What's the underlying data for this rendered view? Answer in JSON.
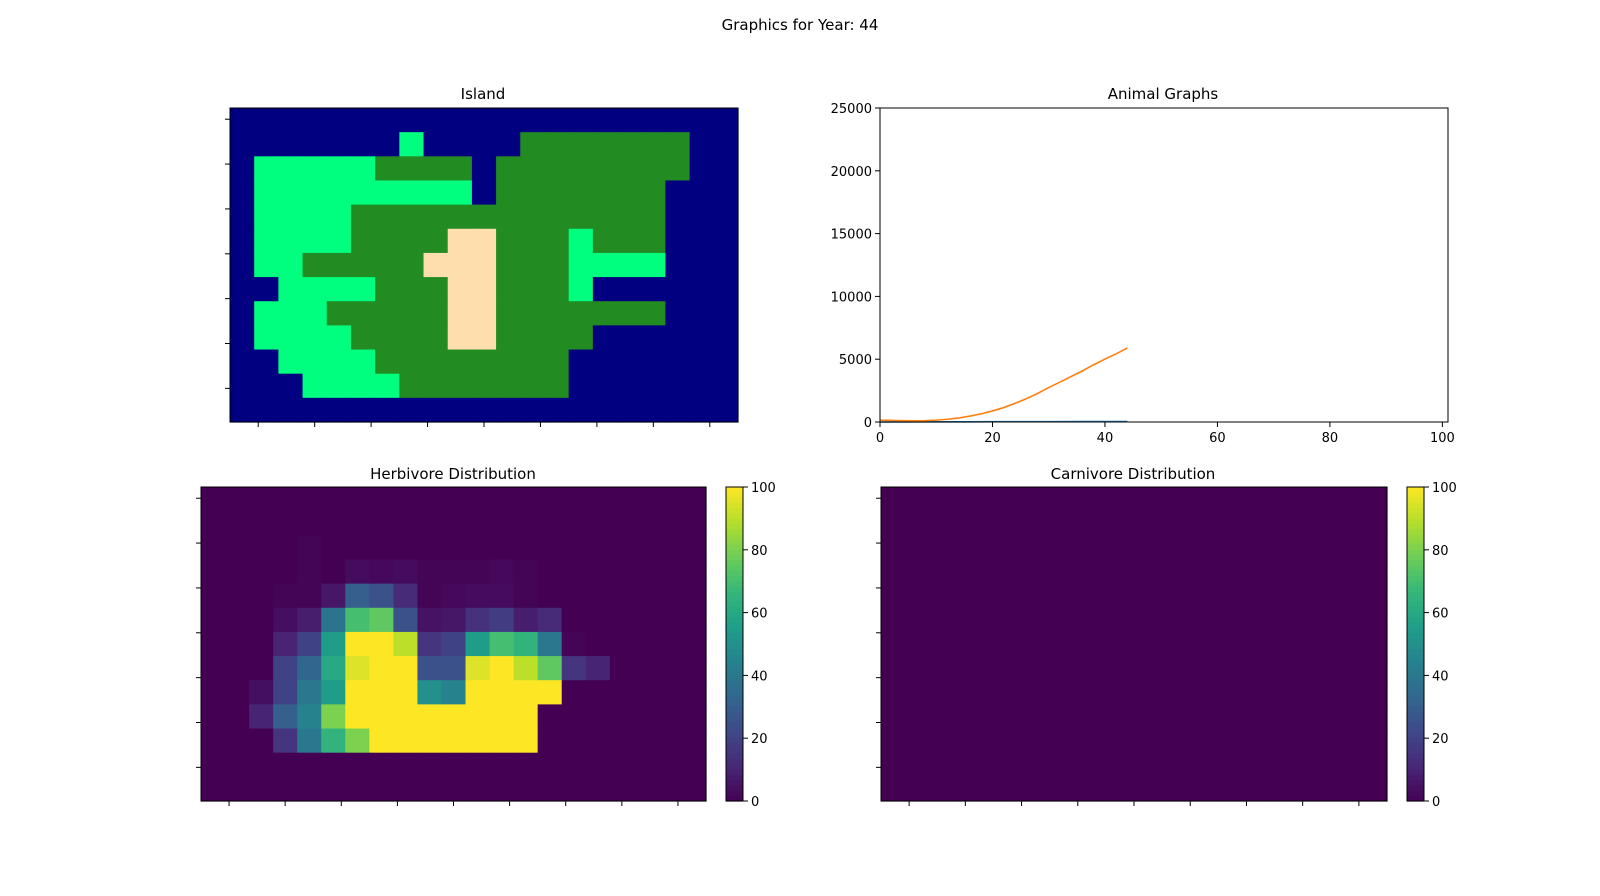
{
  "figure": {
    "title": "Graphics for Year: 44"
  },
  "colors": {
    "water": "#000080",
    "lowland": "#00FF7F",
    "highland": "#228B22",
    "desert": "#FFDEAD",
    "herbivore_line": "#1f77b4",
    "carnivore_line": "#ff7f0e",
    "viridis": [
      "#440154",
      "#482878",
      "#3e4989",
      "#31688e",
      "#26828e",
      "#1f9e89",
      "#35b779",
      "#6ece58",
      "#b5de2b",
      "#fde725"
    ]
  },
  "chart_data": [
    {
      "type": "heatmap",
      "title": "Island",
      "legend": "categorical color map, no colorbar",
      "categories": {
        "W": "water",
        "L": "lowland",
        "H": "highland",
        "D": "desert"
      },
      "rows": [
        "WWWWWWWWWWWWWWWWWWWWW",
        "WWWWWWWLWWWWHHHHHHHWW",
        "WLLLLLHHHHWHHHHHHHHWW",
        "WLLLLLLLLLWHHHHHHHWWW",
        "WLLLLHHHHHHHHHHHHHWWW",
        "WLLLLHHHHDDHHHLHHHWWW",
        "WLLHHHHHDDDHHHLLLLWWW",
        "WWLLLLHHHDDHHHLWWWWWW",
        "WLLLHHHHHDDHHHHHHHWWW",
        "WLLLLHHHHDDHHHHWWWWWW",
        "WWLLLLHHHHHHHHWWWWWWW",
        "WWWLLLLHHHHHHHWWWWWWW",
        "WWWWWWWWWWWWWWWWWWWWW"
      ]
    },
    {
      "type": "line",
      "title": "Animal Graphs",
      "xlim": [
        0,
        101
      ],
      "ylim": [
        0,
        25000
      ],
      "x_ticks": [
        0,
        20,
        40,
        60,
        80,
        100
      ],
      "y_ticks": [
        0,
        5000,
        10000,
        15000,
        20000,
        25000
      ],
      "grid": false,
      "series": [
        {
          "color": "#1f77b4",
          "x": [
            0,
            5,
            10,
            15,
            20,
            25,
            30,
            35,
            40,
            44
          ],
          "y": [
            0,
            8,
            12,
            18,
            22,
            26,
            30,
            34,
            38,
            40
          ]
        },
        {
          "color": "#ff7f0e",
          "x": [
            0,
            2,
            4,
            6,
            8,
            10,
            12,
            14,
            16,
            18,
            20,
            22,
            24,
            26,
            28,
            30,
            32,
            34,
            36,
            38,
            40,
            42,
            44
          ],
          "y": [
            150,
            130,
            110,
            100,
            110,
            150,
            220,
            320,
            470,
            650,
            880,
            1150,
            1480,
            1850,
            2270,
            2740,
            3180,
            3620,
            4070,
            4560,
            5010,
            5430,
            5900
          ]
        }
      ]
    },
    {
      "type": "heatmap",
      "title": "Herbivore Distribution",
      "colormap": "viridis",
      "vmin": 0,
      "vmax": 100,
      "colorbar_ticks": [
        0,
        20,
        40,
        60,
        80,
        100
      ],
      "values": [
        [
          0,
          0,
          0,
          0,
          0,
          0,
          0,
          0,
          0,
          0,
          0,
          0,
          0,
          0,
          0,
          0,
          0,
          0,
          0,
          0,
          0
        ],
        [
          0,
          0,
          0,
          0,
          0,
          0,
          0,
          0,
          0,
          0,
          0,
          0,
          0,
          0,
          0,
          0,
          0,
          0,
          0,
          0,
          0
        ],
        [
          0,
          0,
          0,
          0,
          1,
          0,
          0,
          0,
          0,
          0,
          0,
          0,
          0,
          0,
          0,
          0,
          0,
          0,
          0,
          0,
          0
        ],
        [
          0,
          0,
          0,
          0,
          1,
          0,
          3,
          2,
          3,
          1,
          1,
          1,
          2,
          1,
          0,
          0,
          0,
          0,
          0,
          0,
          0
        ],
        [
          0,
          0,
          0,
          1,
          1,
          6,
          30,
          25,
          12,
          1,
          2,
          3,
          3,
          1,
          0,
          0,
          0,
          0,
          0,
          0,
          0
        ],
        [
          0,
          0,
          0,
          4,
          8,
          38,
          70,
          75,
          25,
          5,
          6,
          14,
          18,
          8,
          12,
          0,
          0,
          0,
          0,
          0,
          0
        ],
        [
          0,
          0,
          0,
          10,
          20,
          55,
          100,
          100,
          90,
          15,
          20,
          55,
          70,
          65,
          40,
          1,
          0,
          0,
          0,
          0,
          0
        ],
        [
          0,
          0,
          0,
          20,
          33,
          60,
          95,
          100,
          100,
          25,
          25,
          95,
          100,
          90,
          75,
          15,
          10,
          0,
          0,
          0,
          0
        ],
        [
          0,
          0,
          4,
          20,
          40,
          55,
          100,
          100,
          100,
          50,
          45,
          100,
          100,
          100,
          100,
          0,
          0,
          0,
          0,
          0,
          0
        ],
        [
          0,
          0,
          10,
          30,
          45,
          80,
          100,
          100,
          100,
          100,
          100,
          100,
          100,
          100,
          0,
          0,
          0,
          0,
          0,
          0,
          0
        ],
        [
          0,
          0,
          0,
          15,
          40,
          65,
          80,
          100,
          100,
          100,
          100,
          100,
          100,
          100,
          0,
          0,
          0,
          0,
          0,
          0,
          0
        ],
        [
          0,
          0,
          0,
          0,
          0,
          0,
          0,
          0,
          0,
          0,
          0,
          0,
          0,
          0,
          0,
          0,
          0,
          0,
          0,
          0,
          0
        ],
        [
          0,
          0,
          0,
          0,
          0,
          0,
          0,
          0,
          0,
          0,
          0,
          0,
          0,
          0,
          0,
          0,
          0,
          0,
          0,
          0,
          0
        ]
      ]
    },
    {
      "type": "heatmap",
      "title": "Carnivore Distribution",
      "colormap": "viridis",
      "vmin": 0,
      "vmax": 100,
      "colorbar_ticks": [
        0,
        20,
        40,
        60,
        80,
        100
      ],
      "values": "all 0 (13 x 21 grid)"
    }
  ]
}
